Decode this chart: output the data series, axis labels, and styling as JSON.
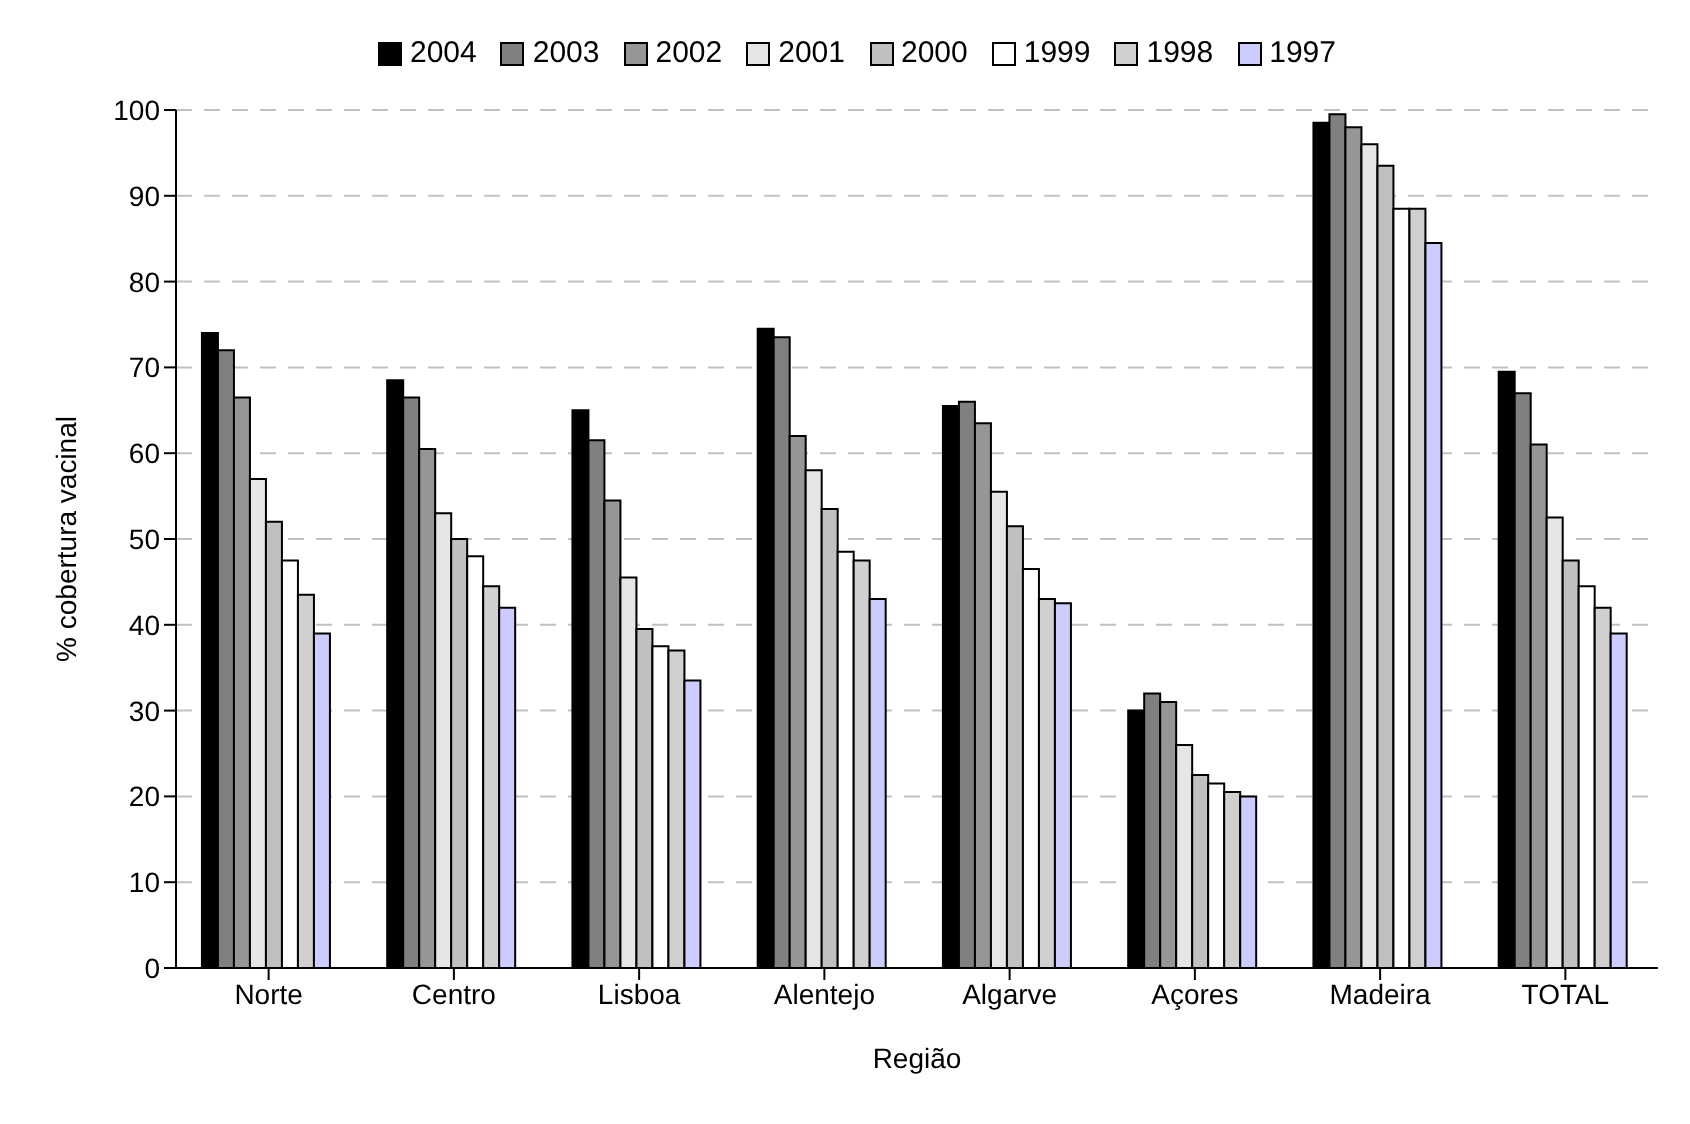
{
  "chart_data": {
    "type": "bar",
    "xlabel": "Região",
    "ylabel": "% cobertura vacinal",
    "categories": [
      "Norte",
      "Centro",
      "Lisboa",
      "Alentejo",
      "Algarve",
      "Açores",
      "Madeira",
      "TOTAL"
    ],
    "series": [
      {
        "name": "2004",
        "color": "#000000",
        "values": [
          74,
          68.5,
          65,
          74.5,
          65.5,
          30,
          98.5,
          69.5
        ]
      },
      {
        "name": "2003",
        "color": "#808080",
        "values": [
          72,
          66.5,
          61.5,
          73.5,
          66,
          32,
          99.5,
          67
        ]
      },
      {
        "name": "2002",
        "color": "#969696",
        "values": [
          66.5,
          60.5,
          54.5,
          62,
          63.5,
          31,
          98,
          61
        ]
      },
      {
        "name": "2001",
        "color": "#e6e6e6",
        "values": [
          57,
          53,
          45.5,
          58,
          55.5,
          26,
          96,
          52.5
        ]
      },
      {
        "name": "2000",
        "color": "#c0c0c0",
        "values": [
          52,
          50,
          39.5,
          53.5,
          51.5,
          22.5,
          93.5,
          47.5
        ]
      },
      {
        "name": "1999",
        "color": "#ffffff",
        "values": [
          47.5,
          48,
          37.5,
          48.5,
          46.5,
          21.5,
          88.5,
          44.5
        ]
      },
      {
        "name": "1998",
        "color": "#d0d0d0",
        "values": [
          43.5,
          44.5,
          37,
          47.5,
          43,
          20.5,
          88.5,
          42
        ]
      },
      {
        "name": "1997",
        "color": "#ccccff",
        "values": [
          39,
          42,
          33.5,
          43,
          42.5,
          20,
          84.5,
          39
        ]
      }
    ],
    "ylim": [
      0,
      100
    ],
    "yticks": [
      0,
      10,
      20,
      30,
      40,
      50,
      60,
      70,
      80,
      90,
      100
    ],
    "grid": "y",
    "legend": "top"
  }
}
